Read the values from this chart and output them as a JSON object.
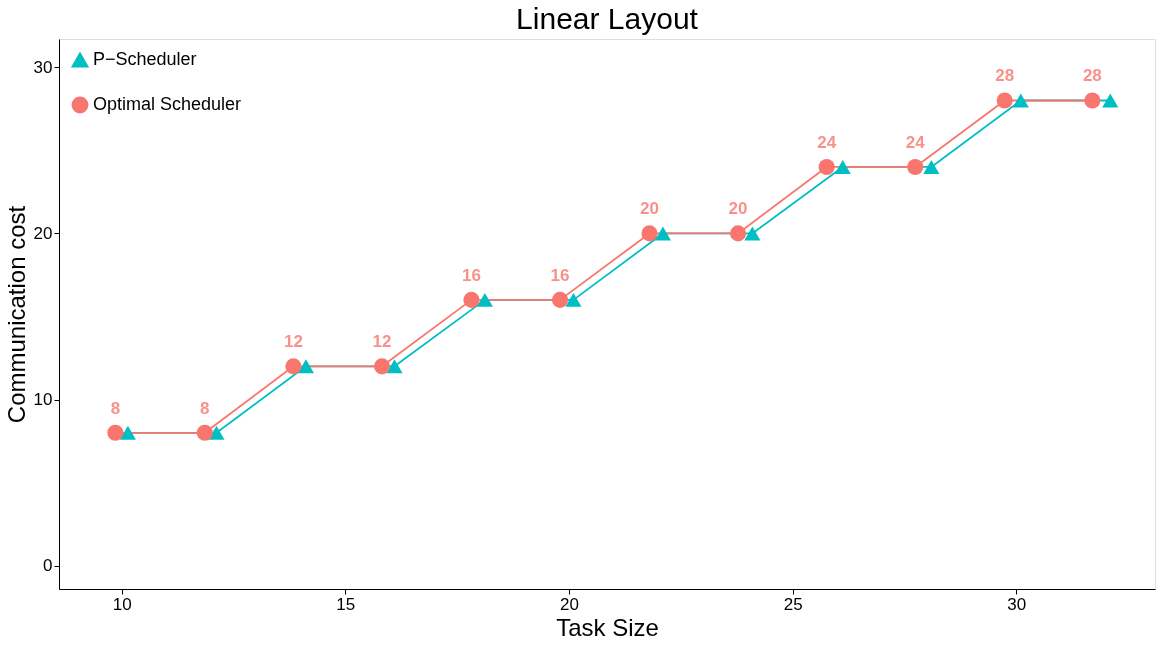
{
  "chart_data": {
    "type": "line",
    "title": "Linear Layout",
    "xlabel": "Task Size",
    "ylabel": "Communication cost",
    "xlim": [
      8.6,
      33.1
    ],
    "xticks": [
      10,
      15,
      20,
      25,
      30
    ],
    "ylim": [
      -1.4,
      31.7
    ],
    "yticks": [
      0,
      10,
      20,
      30
    ],
    "series": [
      {
        "name": "P−Scheduler",
        "color": "#00bfc4",
        "marker": "triangle",
        "x": [
          10.14,
          12.12,
          14.12,
          16.1,
          18.12,
          20.1,
          22.1,
          24.1,
          26.12,
          28.1,
          30.1,
          32.1
        ],
        "values": [
          8,
          8,
          12,
          12,
          16,
          16,
          20,
          20,
          24,
          24,
          28,
          28
        ]
      },
      {
        "name": "Optimal Scheduler",
        "color": "#f8766d",
        "marker": "circle",
        "x": [
          9.86,
          11.86,
          13.84,
          15.82,
          17.82,
          19.8,
          21.8,
          23.78,
          25.76,
          27.74,
          29.74,
          31.7
        ],
        "values": [
          8,
          8,
          12,
          12,
          16,
          16,
          20,
          20,
          24,
          24,
          28,
          28
        ],
        "value_labels": [
          "8",
          "8",
          "12",
          "12",
          "16",
          "16",
          "20",
          "20",
          "24",
          "24",
          "28",
          "28"
        ]
      }
    ],
    "legend": "top left",
    "grid": false
  }
}
